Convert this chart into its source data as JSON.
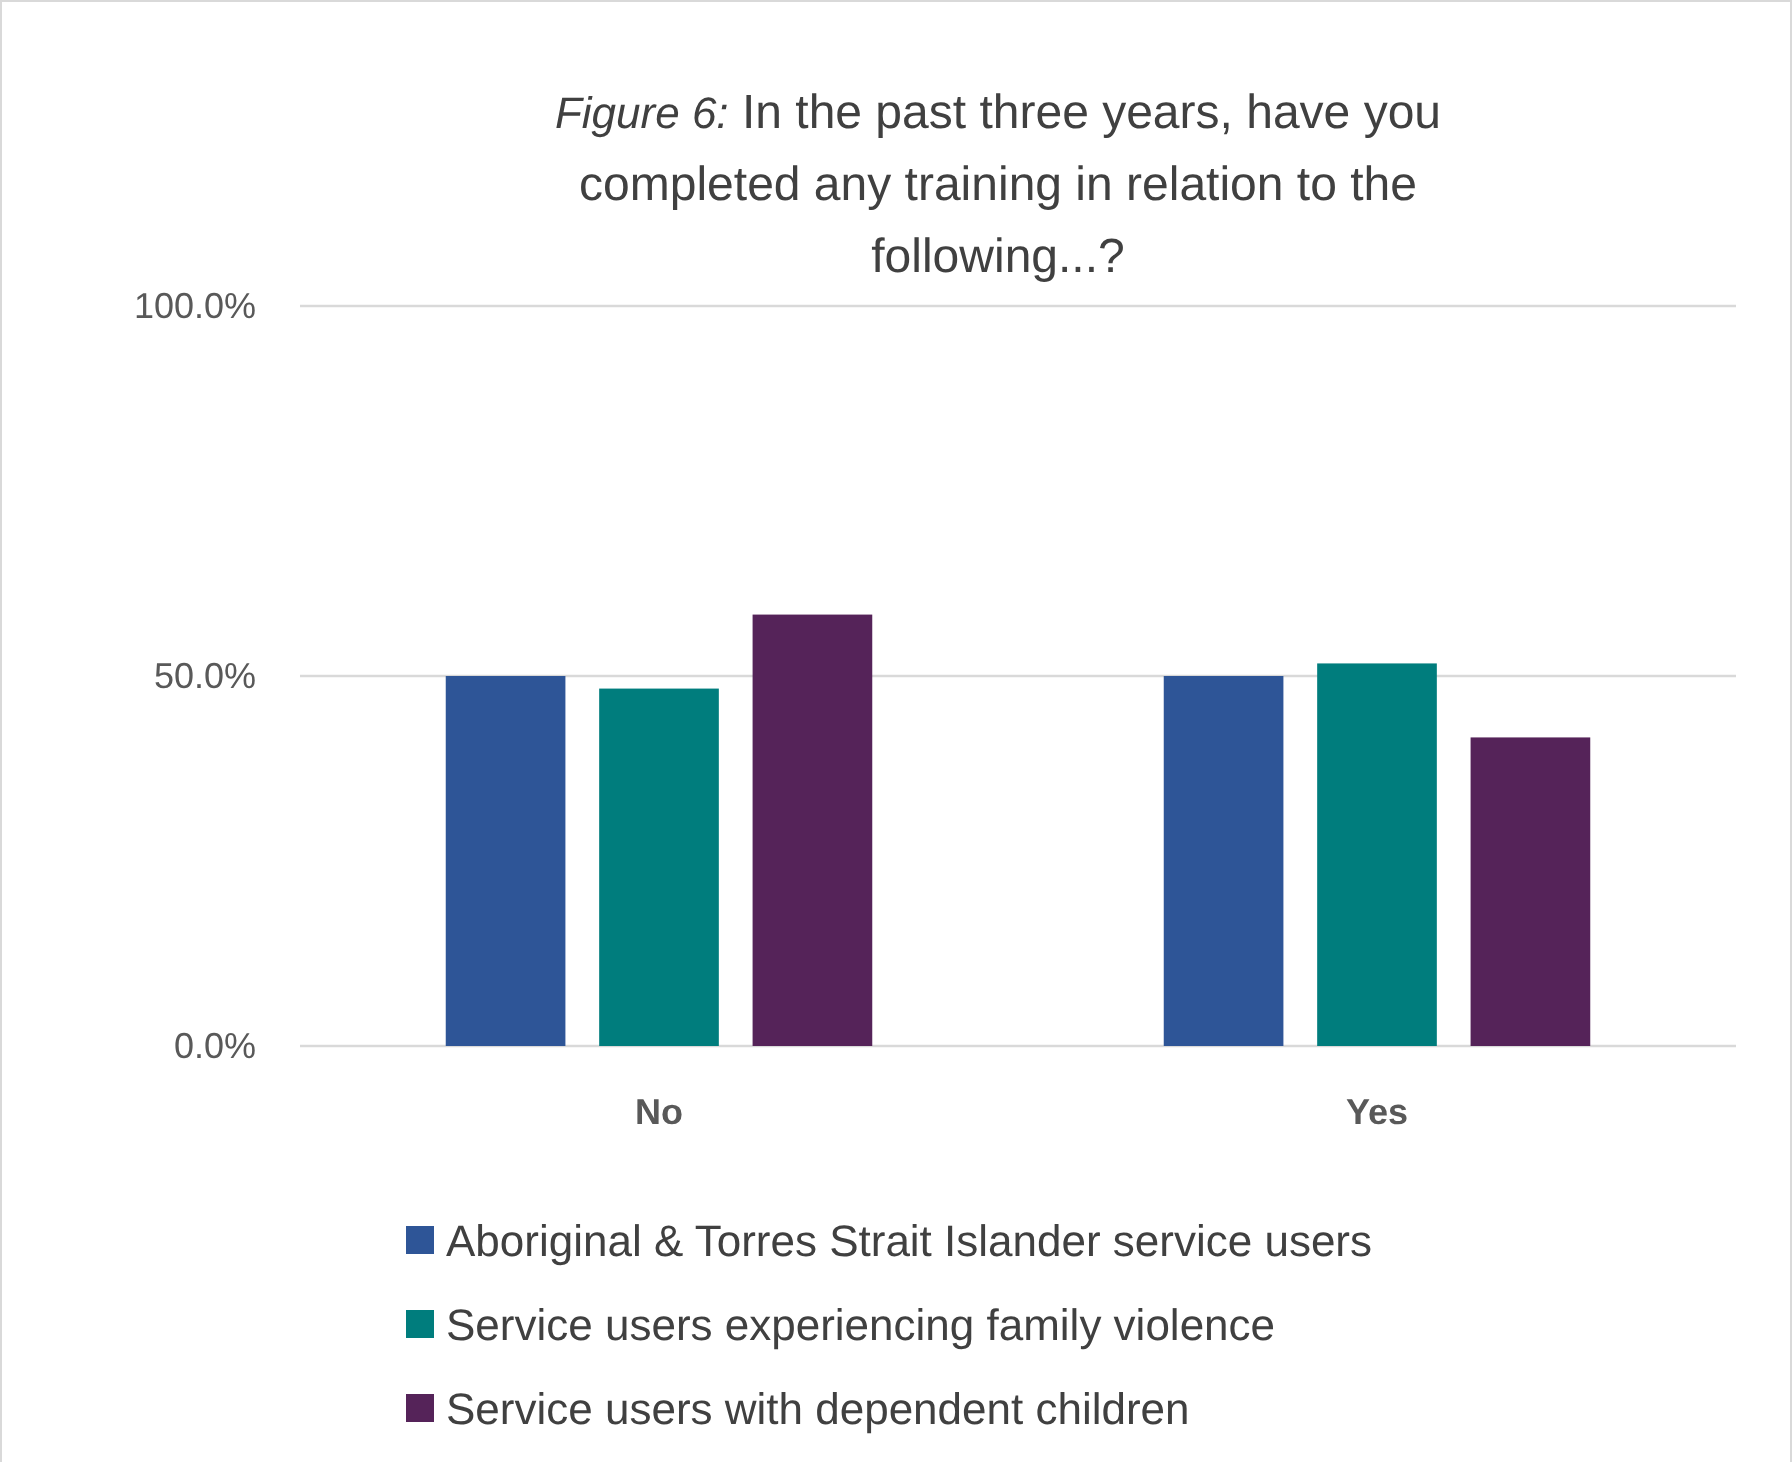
{
  "chart_data": {
    "type": "bar",
    "title": "Figure 6:   In the past three years, have you completed any training in relation to the following...?",
    "categories": [
      "No",
      "Yes"
    ],
    "series": [
      {
        "name": "Aboriginal & Torres Strait Islander service users",
        "color": "#2e5597",
        "values": [
          50,
          50
        ]
      },
      {
        "name": "Service users experiencing family violence",
        "color": "#007d7d",
        "values": [
          48.3,
          51.7
        ]
      },
      {
        "name": "Service users with dependent children",
        "color": "#552359",
        "values": [
          58.3,
          41.7
        ]
      }
    ],
    "ylim": [
      0,
      100
    ],
    "yticks": [
      {
        "value": 0,
        "label": "0.0%"
      },
      {
        "value": 50,
        "label": "50.0%"
      },
      {
        "value": 100,
        "label": "100.0%"
      }
    ],
    "grid": "y",
    "legend": "bottom"
  }
}
